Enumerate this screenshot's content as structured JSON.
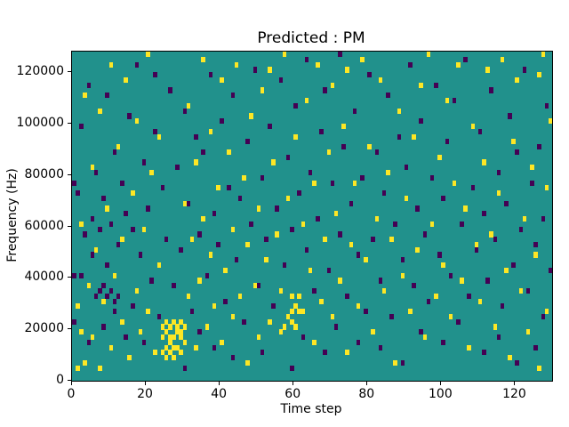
{
  "chart_data": {
    "type": "heatmap",
    "title": "Predicted : PM",
    "xlabel": "Time step",
    "ylabel": "Frequency (Hz)",
    "xlim": [
      0,
      130
    ],
    "ylim": [
      0,
      128000
    ],
    "xticks": [
      0,
      20,
      40,
      60,
      80,
      100,
      120
    ],
    "yticks": [
      0,
      20000,
      40000,
      60000,
      80000,
      100000,
      120000
    ],
    "n_time_bins": 130,
    "n_freq_bins": 64,
    "freq_bin_size_hz": 2000,
    "legend": "none",
    "grid": false,
    "colors": {
      "background": "#21918c",
      "active": "#fde725",
      "inactive": "#440154",
      "spine": "#000000"
    },
    "cells_active": [
      [
        1,
        2
      ],
      [
        1,
        14
      ],
      [
        2,
        9
      ],
      [
        2,
        30
      ],
      [
        3,
        3
      ],
      [
        3,
        55
      ],
      [
        4,
        18
      ],
      [
        5,
        8
      ],
      [
        5,
        41
      ],
      [
        6,
        25
      ],
      [
        7,
        2
      ],
      [
        7,
        52
      ],
      [
        8,
        15
      ],
      [
        9,
        33
      ],
      [
        10,
        6
      ],
      [
        10,
        61
      ],
      [
        11,
        20
      ],
      [
        12,
        45
      ],
      [
        13,
        11
      ],
      [
        13,
        27
      ],
      [
        14,
        58
      ],
      [
        15,
        4
      ],
      [
        16,
        36
      ],
      [
        17,
        17
      ],
      [
        17,
        50
      ],
      [
        18,
        9
      ],
      [
        19,
        29
      ],
      [
        20,
        13
      ],
      [
        20,
        63
      ],
      [
        21,
        40
      ],
      [
        22,
        5
      ],
      [
        23,
        22
      ],
      [
        23,
        47
      ],
      [
        24,
        8
      ],
      [
        24,
        5
      ],
      [
        25,
        4
      ],
      [
        25,
        6
      ],
      [
        25,
        9
      ],
      [
        26,
        5
      ],
      [
        26,
        7
      ],
      [
        26,
        10
      ],
      [
        27,
        4
      ],
      [
        27,
        8
      ],
      [
        27,
        11
      ],
      [
        28,
        6
      ],
      [
        28,
        9
      ],
      [
        29,
        5
      ],
      [
        29,
        8
      ],
      [
        29,
        11
      ],
      [
        30,
        7
      ],
      [
        30,
        10
      ],
      [
        30,
        34
      ],
      [
        31,
        16
      ],
      [
        31,
        53
      ],
      [
        32,
        27
      ],
      [
        33,
        6
      ],
      [
        33,
        42
      ],
      [
        34,
        19
      ],
      [
        35,
        31
      ],
      [
        35,
        62
      ],
      [
        36,
        10
      ],
      [
        37,
        24
      ],
      [
        37,
        48
      ],
      [
        38,
        14
      ],
      [
        39,
        37
      ],
      [
        40,
        7
      ],
      [
        40,
        58
      ],
      [
        41,
        21
      ],
      [
        42,
        44
      ],
      [
        43,
        12
      ],
      [
        43,
        29
      ],
      [
        44,
        61
      ],
      [
        45,
        16
      ],
      [
        46,
        39
      ],
      [
        47,
        3
      ],
      [
        47,
        26
      ],
      [
        48,
        51
      ],
      [
        49,
        18
      ],
      [
        50,
        8
      ],
      [
        50,
        33
      ],
      [
        51,
        56
      ],
      [
        52,
        23
      ],
      [
        53,
        11
      ],
      [
        53,
        60
      ],
      [
        54,
        42
      ],
      [
        55,
        28
      ],
      [
        56,
        9
      ],
      [
        56,
        17
      ],
      [
        57,
        10
      ],
      [
        57,
        63
      ],
      [
        58,
        12
      ],
      [
        58,
        35
      ],
      [
        59,
        11
      ],
      [
        59,
        16
      ],
      [
        60,
        10
      ],
      [
        60,
        47
      ],
      [
        61,
        13
      ],
      [
        61,
        16
      ],
      [
        62,
        13
      ],
      [
        62,
        30
      ],
      [
        63,
        54
      ],
      [
        64,
        21
      ],
      [
        65,
        7
      ],
      [
        65,
        38
      ],
      [
        66,
        61
      ],
      [
        67,
        15
      ],
      [
        68,
        27
      ],
      [
        69,
        44
      ],
      [
        70,
        12
      ],
      [
        70,
        57
      ],
      [
        71,
        32
      ],
      [
        72,
        19
      ],
      [
        73,
        49
      ],
      [
        74,
        5
      ],
      [
        74,
        60
      ],
      [
        75,
        26
      ],
      [
        76,
        38
      ],
      [
        77,
        14
      ],
      [
        78,
        62
      ],
      [
        79,
        23
      ],
      [
        80,
        45
      ],
      [
        81,
        9
      ],
      [
        82,
        31
      ],
      [
        83,
        58
      ],
      [
        84,
        17
      ],
      [
        85,
        40
      ],
      [
        86,
        27
      ],
      [
        87,
        3
      ],
      [
        88,
        52
      ],
      [
        89,
        20
      ],
      [
        90,
        35
      ],
      [
        91,
        13
      ],
      [
        92,
        47
      ],
      [
        93,
        25
      ],
      [
        94,
        57
      ],
      [
        95,
        8
      ],
      [
        96,
        63
      ],
      [
        97,
        30
      ],
      [
        98,
        16
      ],
      [
        99,
        43
      ],
      [
        100,
        22
      ],
      [
        101,
        54
      ],
      [
        102,
        12
      ],
      [
        103,
        38
      ],
      [
        104,
        61
      ],
      [
        105,
        19
      ],
      [
        106,
        33
      ],
      [
        107,
        6
      ],
      [
        108,
        49
      ],
      [
        109,
        26
      ],
      [
        110,
        15
      ],
      [
        111,
        42
      ],
      [
        112,
        60
      ],
      [
        113,
        28
      ],
      [
        114,
        10
      ],
      [
        115,
        36
      ],
      [
        116,
        62
      ],
      [
        117,
        21
      ],
      [
        118,
        4
      ],
      [
        119,
        46
      ],
      [
        120,
        58
      ],
      [
        121,
        17
      ],
      [
        122,
        31
      ],
      [
        123,
        9
      ],
      [
        124,
        41
      ],
      [
        125,
        24
      ],
      [
        126,
        2
      ],
      [
        126,
        59
      ],
      [
        127,
        63
      ],
      [
        128,
        13
      ],
      [
        128,
        37
      ],
      [
        129,
        50
      ],
      [
        27,
        6
      ],
      [
        28,
        10
      ],
      [
        26,
        8
      ],
      [
        25,
        11
      ],
      [
        24,
        10
      ],
      [
        29,
        9
      ],
      [
        59,
        13
      ],
      [
        60,
        14
      ]
    ],
    "cells_inactive": [
      [
        0,
        11
      ],
      [
        0,
        20
      ],
      [
        0,
        38
      ],
      [
        1,
        36
      ],
      [
        2,
        20
      ],
      [
        2,
        49
      ],
      [
        3,
        28
      ],
      [
        4,
        7
      ],
      [
        4,
        57
      ],
      [
        5,
        24
      ],
      [
        5,
        31
      ],
      [
        6,
        16
      ],
      [
        6,
        40
      ],
      [
        7,
        17
      ],
      [
        7,
        29
      ],
      [
        8,
        10
      ],
      [
        8,
        18
      ],
      [
        8,
        35
      ],
      [
        9,
        16
      ],
      [
        9,
        22
      ],
      [
        9,
        55
      ],
      [
        10,
        17
      ],
      [
        10,
        30
      ],
      [
        11,
        13
      ],
      [
        11,
        15
      ],
      [
        11,
        44
      ],
      [
        12,
        16
      ],
      [
        12,
        26
      ],
      [
        13,
        38
      ],
      [
        14,
        8
      ],
      [
        14,
        32
      ],
      [
        15,
        51
      ],
      [
        16,
        14
      ],
      [
        16,
        29
      ],
      [
        17,
        61
      ],
      [
        18,
        24
      ],
      [
        19,
        7
      ],
      [
        19,
        42
      ],
      [
        20,
        33
      ],
      [
        21,
        19
      ],
      [
        22,
        48
      ],
      [
        22,
        59
      ],
      [
        23,
        12
      ],
      [
        24,
        37
      ],
      [
        25,
        27
      ],
      [
        26,
        56
      ],
      [
        27,
        18
      ],
      [
        28,
        41
      ],
      [
        29,
        25
      ],
      [
        30,
        2
      ],
      [
        30,
        52
      ],
      [
        31,
        34
      ],
      [
        32,
        13
      ],
      [
        33,
        47
      ],
      [
        34,
        9
      ],
      [
        34,
        28
      ],
      [
        35,
        44
      ],
      [
        36,
        20
      ],
      [
        37,
        59
      ],
      [
        38,
        6
      ],
      [
        38,
        32
      ],
      [
        39,
        26
      ],
      [
        40,
        50
      ],
      [
        41,
        15
      ],
      [
        42,
        37
      ],
      [
        43,
        4
      ],
      [
        43,
        55
      ],
      [
        44,
        23
      ],
      [
        45,
        35
      ],
      [
        46,
        11
      ],
      [
        47,
        46
      ],
      [
        48,
        30
      ],
      [
        49,
        60
      ],
      [
        50,
        18
      ],
      [
        51,
        5
      ],
      [
        51,
        39
      ],
      [
        52,
        27
      ],
      [
        53,
        49
      ],
      [
        54,
        14
      ],
      [
        55,
        33
      ],
      [
        56,
        58
      ],
      [
        57,
        22
      ],
      [
        58,
        43
      ],
      [
        59,
        2
      ],
      [
        59,
        29
      ],
      [
        60,
        53
      ],
      [
        61,
        36
      ],
      [
        62,
        8
      ],
      [
        63,
        25
      ],
      [
        63,
        62
      ],
      [
        64,
        40
      ],
      [
        65,
        17
      ],
      [
        66,
        31
      ],
      [
        67,
        48
      ],
      [
        68,
        5
      ],
      [
        68,
        56
      ],
      [
        69,
        21
      ],
      [
        70,
        38
      ],
      [
        71,
        10
      ],
      [
        72,
        28
      ],
      [
        72,
        63
      ],
      [
        73,
        45
      ],
      [
        74,
        16
      ],
      [
        75,
        34
      ],
      [
        76,
        52
      ],
      [
        77,
        7
      ],
      [
        77,
        24
      ],
      [
        78,
        39
      ],
      [
        79,
        13
      ],
      [
        80,
        59
      ],
      [
        81,
        27
      ],
      [
        82,
        44
      ],
      [
        83,
        6
      ],
      [
        83,
        19
      ],
      [
        84,
        36
      ],
      [
        85,
        55
      ],
      [
        86,
        12
      ],
      [
        87,
        30
      ],
      [
        88,
        47
      ],
      [
        89,
        3
      ],
      [
        89,
        23
      ],
      [
        90,
        41
      ],
      [
        91,
        61
      ],
      [
        92,
        18
      ],
      [
        93,
        33
      ],
      [
        94,
        9
      ],
      [
        94,
        50
      ],
      [
        95,
        28
      ],
      [
        96,
        15
      ],
      [
        97,
        39
      ],
      [
        98,
        57
      ],
      [
        99,
        24
      ],
      [
        100,
        7
      ],
      [
        100,
        35
      ],
      [
        101,
        46
      ],
      [
        102,
        20
      ],
      [
        103,
        54
      ],
      [
        104,
        11
      ],
      [
        105,
        30
      ],
      [
        106,
        62
      ],
      [
        107,
        16
      ],
      [
        108,
        37
      ],
      [
        109,
        25
      ],
      [
        110,
        48
      ],
      [
        111,
        5
      ],
      [
        111,
        32
      ],
      [
        112,
        19
      ],
      [
        113,
        56
      ],
      [
        114,
        27
      ],
      [
        115,
        8
      ],
      [
        115,
        40
      ],
      [
        116,
        14
      ],
      [
        117,
        34
      ],
      [
        118,
        51
      ],
      [
        119,
        22
      ],
      [
        120,
        3
      ],
      [
        120,
        44
      ],
      [
        121,
        29
      ],
      [
        122,
        60
      ],
      [
        123,
        17
      ],
      [
        124,
        38
      ],
      [
        125,
        6
      ],
      [
        125,
        26
      ],
      [
        126,
        45
      ],
      [
        127,
        12
      ],
      [
        127,
        31
      ],
      [
        128,
        53
      ],
      [
        129,
        21
      ]
    ]
  }
}
